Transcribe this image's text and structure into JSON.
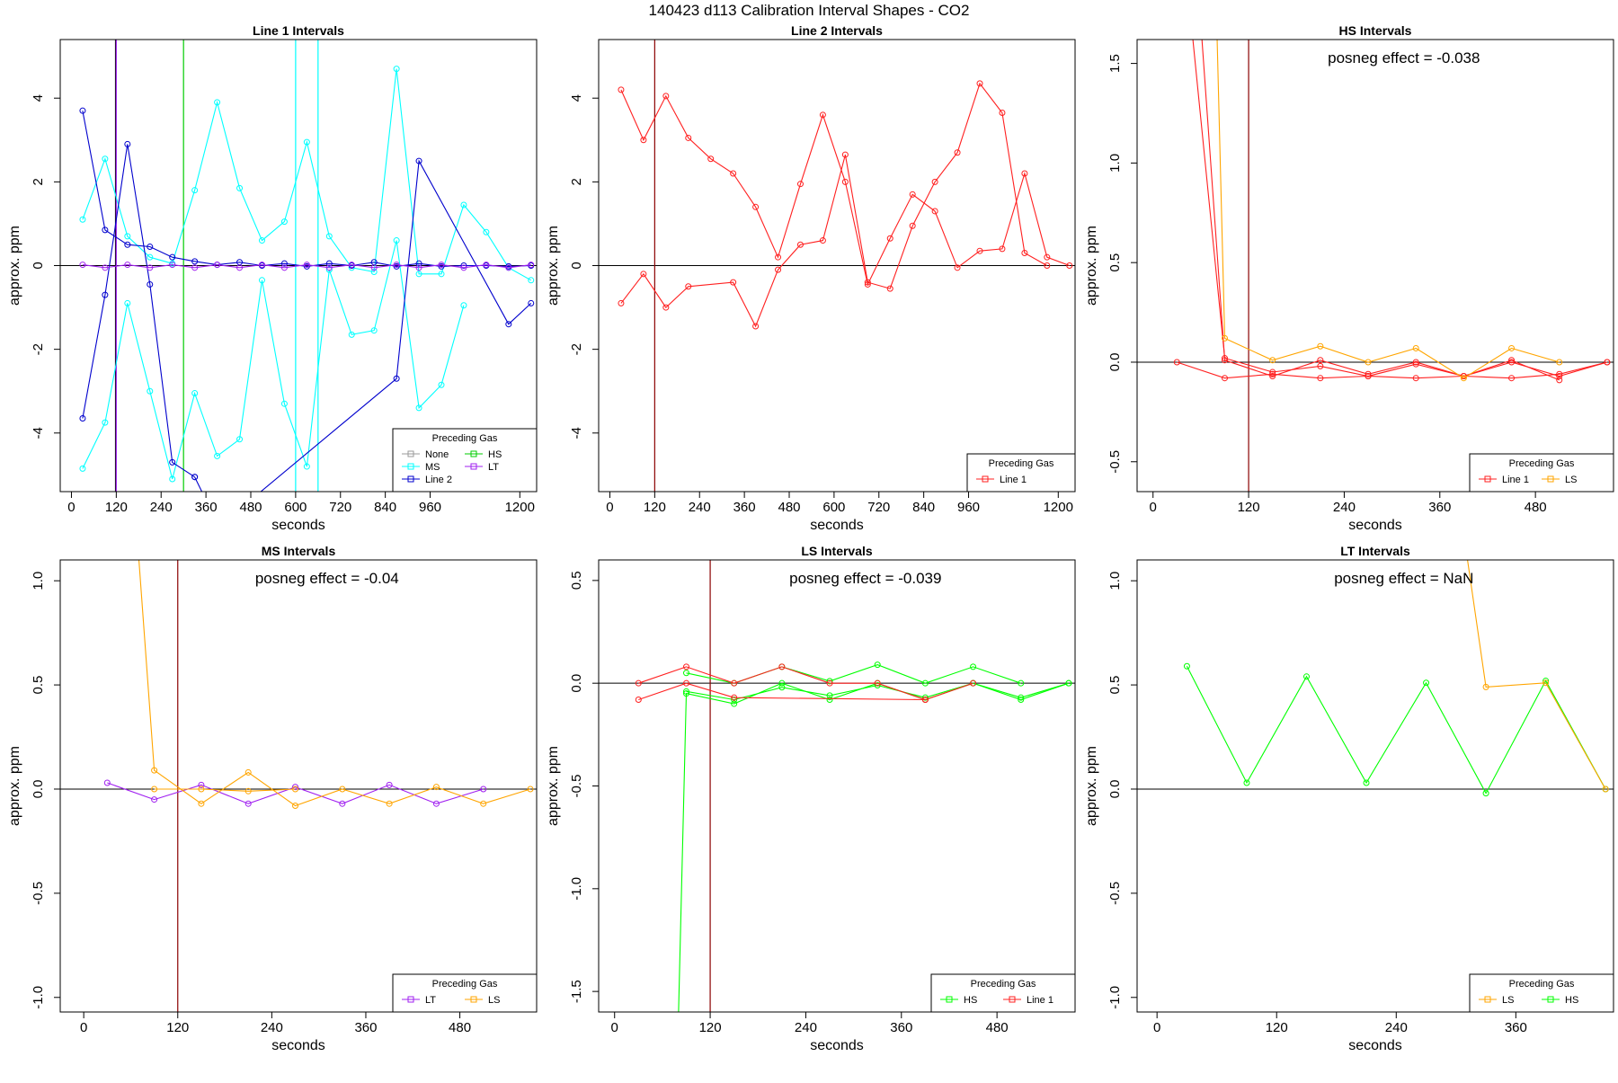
{
  "figure_title": "140423  d113   Calibration Interval Shapes - CO2",
  "chart_data": [
    {
      "type": "line",
      "title": "Line 1 Intervals",
      "xlabel": "seconds",
      "ylabel": "approx. ppm",
      "xlim": [
        -30,
        1245
      ],
      "ylim": [
        -5.4,
        5.4
      ],
      "xticks": [
        0,
        120,
        240,
        360,
        480,
        600,
        720,
        840,
        960,
        1200
      ],
      "yticks": [
        -4,
        -2,
        0,
        2,
        4
      ],
      "vlines": [
        {
          "x": 118,
          "color": "#000000"
        },
        {
          "x": 120,
          "color": "#a020f0"
        },
        {
          "x": 300,
          "color": "#00cc00"
        },
        {
          "x": 600,
          "color": "#00ffff"
        },
        {
          "x": 660,
          "color": "#00ffff"
        }
      ],
      "posneg_label": "",
      "legend": {
        "title": "Preceding Gas",
        "position": "bottom-right",
        "columns": 2,
        "entries": [
          {
            "name": "None",
            "color": "#9a9a9a"
          },
          {
            "name": "MS",
            "color": "#00ffff"
          },
          {
            "name": "Line 2",
            "color": "#0000cd"
          },
          {
            "name": "HS",
            "color": "#00cc00"
          },
          {
            "name": "LT",
            "color": "#a020f0"
          }
        ]
      },
      "series": [
        {
          "name": "MS",
          "color": "#00ffff",
          "x": [
            30,
            90,
            150,
            210,
            270,
            330,
            390,
            450,
            510,
            570,
            630,
            690,
            750,
            810,
            870,
            930,
            990,
            1050,
            1110,
            1170,
            1230
          ],
          "y": [
            1.1,
            2.55,
            0.7,
            0.2,
            0.05,
            1.8,
            3.9,
            1.85,
            0.6,
            1.05,
            2.95,
            0.7,
            -0.05,
            -0.15,
            4.7,
            -0.2,
            -0.2,
            1.45,
            0.8,
            -0.05,
            -0.35
          ]
        },
        {
          "name": "MS",
          "color": "#00ffff",
          "x": [
            30,
            90,
            150,
            210,
            270,
            330,
            390,
            450,
            510,
            570,
            630,
            690,
            750,
            810,
            870,
            930,
            990,
            1050
          ],
          "y": [
            -4.85,
            -3.75,
            -0.9,
            -3.0,
            -5.1,
            -3.05,
            -4.55,
            -4.15,
            -0.35,
            -3.3,
            -4.8,
            -0.1,
            -1.65,
            -1.55,
            0.6,
            -3.4,
            -2.85,
            -0.95
          ]
        },
        {
          "name": "Line 2",
          "color": "#0000cd",
          "x": [
            30,
            90,
            150,
            210,
            270,
            330,
            390,
            450,
            510,
            570,
            630,
            690,
            750,
            810,
            870,
            930,
            990,
            1050,
            1110,
            1170,
            1230
          ],
          "y": [
            3.7,
            0.85,
            0.5,
            0.45,
            0.2,
            0.1,
            0.02,
            0.08,
            0.0,
            0.05,
            -0.02,
            0.05,
            0.0,
            0.08,
            -0.02,
            0.05,
            -0.02,
            0.0,
            0.0,
            -0.02,
            0.0
          ]
        },
        {
          "name": "Line 2",
          "color": "#0000cd",
          "x": [
            30,
            90,
            150,
            210,
            270,
            330
          ],
          "y": [
            -3.65,
            -0.7,
            2.9,
            -0.45,
            -4.7,
            -5.05
          ]
        },
        {
          "name": "Line 2",
          "color": "#0000cd",
          "x": [
            330,
            360
          ],
          "y": [
            -5.05,
            -5.6
          ]
        },
        {
          "name": "Line 2",
          "color": "#0000cd",
          "x": [
            480,
            870,
            930,
            1170,
            1230
          ],
          "y": [
            -5.6,
            -2.7,
            2.5,
            -1.4,
            -0.9
          ]
        },
        {
          "name": "LT",
          "color": "#a020f0",
          "x": [
            30,
            90,
            150,
            210,
            270,
            330,
            390,
            450,
            510,
            570,
            630,
            690,
            750,
            810,
            870,
            930,
            990,
            1050,
            1110,
            1170,
            1230
          ],
          "y": [
            0.02,
            -0.05,
            0.02,
            -0.05,
            0.02,
            -0.05,
            0.02,
            -0.05,
            0.02,
            -0.05,
            0.02,
            -0.05,
            0.02,
            -0.05,
            0.02,
            -0.05,
            0.02,
            -0.05,
            0.02,
            -0.05,
            0.02
          ]
        }
      ]
    },
    {
      "type": "line",
      "title": "Line 2 Intervals",
      "xlabel": "seconds",
      "ylabel": "approx. ppm",
      "xlim": [
        -30,
        1245
      ],
      "ylim": [
        -5.4,
        5.4
      ],
      "xticks": [
        0,
        120,
        240,
        360,
        480,
        600,
        720,
        840,
        960,
        1200
      ],
      "yticks": [
        -4,
        -2,
        0,
        2,
        4
      ],
      "vlines": [
        {
          "x": 120,
          "color": "#8b0000"
        }
      ],
      "posneg_label": "",
      "legend": {
        "title": "Preceding Gas",
        "position": "bottom-right",
        "columns": 1,
        "entries": [
          {
            "name": "Line 1",
            "color": "#ff2020"
          }
        ]
      },
      "series": [
        {
          "name": "Line 1",
          "color": "#ff2020",
          "x": [
            30,
            90,
            150,
            210,
            270,
            330,
            390,
            450,
            510,
            570,
            630,
            690,
            750,
            810,
            870,
            930,
            990,
            1050,
            1110,
            1170,
            1230
          ],
          "y": [
            4.2,
            3.0,
            4.05,
            3.05,
            2.55,
            2.2,
            1.4,
            0.2,
            1.95,
            3.6,
            2.0,
            -0.45,
            0.65,
            1.7,
            1.3,
            -0.05,
            0.35,
            0.4,
            2.2,
            0.2,
            0.0
          ]
        },
        {
          "name": "Line 1",
          "color": "#ff2020",
          "x": [
            30,
            90,
            150,
            210,
            330,
            390,
            450,
            510,
            570,
            630,
            690,
            750,
            810,
            870,
            930,
            990,
            1050,
            1110,
            1170
          ],
          "y": [
            -0.9,
            -0.2,
            -1.0,
            -0.5,
            -0.4,
            -1.45,
            -0.1,
            0.5,
            0.6,
            2.65,
            -0.4,
            -0.55,
            0.95,
            2.0,
            2.7,
            4.35,
            3.65,
            0.3,
            0.0
          ]
        }
      ]
    },
    {
      "type": "line",
      "title": "HS Intervals",
      "xlabel": "seconds",
      "ylabel": "approx. ppm",
      "xlim": [
        -20,
        578
      ],
      "ylim": [
        -0.65,
        1.62
      ],
      "xticks": [
        0,
        120,
        240,
        360,
        480
      ],
      "yticks": [
        -0.5,
        0.0,
        0.5,
        1.0,
        1.5
      ],
      "vlines": [
        {
          "x": 120,
          "color": "#8b0000"
        }
      ],
      "posneg_label": "posneg effect = -0.038",
      "legend": {
        "title": "Preceding Gas",
        "position": "bottom-right",
        "columns": 2,
        "entries": [
          {
            "name": "Line 1",
            "color": "#ff2020"
          },
          {
            "name": "LS",
            "color": "#ffa500"
          }
        ]
      },
      "series": [
        {
          "name": "Line 1",
          "color": "#ff2020",
          "x": [
            48,
            90,
            150,
            210,
            270,
            330,
            390,
            450,
            510,
            570
          ],
          "y": [
            1.7,
            0.02,
            -0.05,
            -0.02,
            -0.07,
            -0.01,
            -0.07,
            0.0,
            -0.07,
            0.0
          ]
        },
        {
          "name": "Line 1",
          "color": "#ff2020",
          "x": [
            60,
            90,
            150,
            210,
            270,
            330,
            390,
            450,
            510
          ],
          "y": [
            1.7,
            0.01,
            -0.07,
            0.01,
            -0.06,
            0.0,
            -0.07,
            0.01,
            -0.09
          ]
        },
        {
          "name": "Line 1",
          "color": "#ff2020",
          "x": [
            30,
            90,
            150,
            210,
            270,
            330,
            390,
            450,
            510,
            570
          ],
          "y": [
            0.0,
            -0.08,
            -0.06,
            -0.08,
            -0.07,
            -0.08,
            -0.07,
            -0.08,
            -0.06,
            0.0
          ]
        },
        {
          "name": "LS",
          "color": "#ffa500",
          "x": [
            80,
            90,
            150,
            210,
            270,
            330,
            390,
            450,
            510
          ],
          "y": [
            1.7,
            0.12,
            0.01,
            0.08,
            0.0,
            0.07,
            -0.08,
            0.07,
            0.0
          ]
        }
      ]
    },
    {
      "type": "line",
      "title": "MS Intervals",
      "xlabel": "seconds",
      "ylabel": "approx. ppm",
      "xlim": [
        -30,
        578
      ],
      "ylim": [
        -1.07,
        1.1
      ],
      "xticks": [
        0,
        120,
        240,
        360,
        480
      ],
      "yticks": [
        -1.0,
        -0.5,
        0.0,
        0.5,
        1.0
      ],
      "vlines": [
        {
          "x": 120,
          "color": "#8b0000"
        }
      ],
      "posneg_label": "posneg effect = -0.04",
      "legend": {
        "title": "Preceding Gas",
        "position": "bottom-right",
        "columns": 2,
        "entries": [
          {
            "name": "LT",
            "color": "#a020f0"
          },
          {
            "name": "LS",
            "color": "#ffa500"
          }
        ]
      },
      "series": [
        {
          "name": "LT",
          "color": "#a020f0",
          "x": [
            30,
            90,
            150,
            210,
            270,
            330,
            390,
            450,
            510
          ],
          "y": [
            0.03,
            -0.05,
            0.02,
            -0.07,
            0.01,
            -0.07,
            0.02,
            -0.07,
            0.0
          ]
        },
        {
          "name": "LS",
          "color": "#ffa500",
          "x": [
            70,
            90,
            150,
            210,
            270,
            330,
            390,
            450,
            510,
            570
          ],
          "y": [
            1.12,
            0.09,
            -0.07,
            0.08,
            -0.08,
            0.0,
            -0.07,
            0.01,
            -0.07,
            0.0
          ]
        },
        {
          "name": "LS",
          "color": "#ffa500",
          "x": [
            90,
            150,
            210,
            270
          ],
          "y": [
            0.0,
            0.0,
            -0.01,
            0.0
          ]
        }
      ]
    },
    {
      "type": "line",
      "title": "LS Intervals",
      "xlabel": "seconds",
      "ylabel": "approx. ppm",
      "xlim": [
        -20,
        578
      ],
      "ylim": [
        -1.6,
        0.6
      ],
      "xticks": [
        0,
        120,
        240,
        360,
        480
      ],
      "yticks": [
        -1.5,
        -1.0,
        -0.5,
        0.0,
        0.5
      ],
      "vlines": [
        {
          "x": 120,
          "color": "#8b0000"
        }
      ],
      "posneg_label": "posneg effect = -0.039",
      "legend": {
        "title": "Preceding Gas",
        "position": "bottom-right",
        "columns": 2,
        "entries": [
          {
            "name": "HS",
            "color": "#00ff00"
          },
          {
            "name": "Line 1",
            "color": "#ff2020"
          }
        ]
      },
      "series": [
        {
          "name": "HS",
          "color": "#00ff00",
          "x": [
            80,
            90,
            150,
            210,
            270,
            330,
            390,
            450,
            510,
            570
          ],
          "y": [
            -1.65,
            -0.05,
            -0.1,
            0.0,
            -0.08,
            0.0,
            -0.08,
            0.0,
            -0.08,
            0.0
          ]
        },
        {
          "name": "HS",
          "color": "#00ff00",
          "x": [
            90,
            150,
            210,
            270,
            330,
            390,
            450,
            510,
            570
          ],
          "y": [
            -0.04,
            -0.08,
            -0.02,
            -0.06,
            -0.01,
            -0.07,
            0.0,
            -0.07,
            0.0
          ]
        },
        {
          "name": "HS",
          "color": "#00ff00",
          "x": [
            90,
            150,
            210,
            270,
            330,
            390,
            450,
            510
          ],
          "y": [
            0.05,
            0.0,
            0.08,
            0.01,
            0.09,
            0.0,
            0.08,
            0.0
          ]
        },
        {
          "name": "Line 1",
          "color": "#ff2020",
          "x": [
            30,
            90,
            150,
            210,
            270,
            330,
            390,
            450
          ],
          "y": [
            0.0,
            0.08,
            0.0,
            0.08,
            0.0,
            0.0,
            -0.08,
            0.0
          ]
        },
        {
          "name": "Line 1",
          "color": "#ff2020",
          "x": [
            30,
            90,
            150,
            390
          ],
          "y": [
            -0.08,
            0.0,
            -0.07,
            -0.08
          ]
        }
      ]
    },
    {
      "type": "line",
      "title": "LT Intervals",
      "xlabel": "seconds",
      "ylabel": "approx. ppm",
      "xlim": [
        -20,
        458
      ],
      "ylim": [
        -1.07,
        1.1
      ],
      "xticks": [
        0,
        120,
        240,
        360
      ],
      "yticks": [
        -1.0,
        -0.5,
        0.0,
        0.5,
        1.0
      ],
      "vlines": [],
      "posneg_label": "posneg effect = NaN",
      "legend": {
        "title": "Preceding Gas",
        "position": "bottom-right",
        "columns": 2,
        "entries": [
          {
            "name": "LS",
            "color": "#ffa500"
          },
          {
            "name": "HS",
            "color": "#00ff00"
          }
        ]
      },
      "series": [
        {
          "name": "HS",
          "color": "#00ff00",
          "x": [
            30,
            90,
            150,
            210,
            270,
            330,
            390,
            450
          ],
          "y": [
            0.59,
            0.03,
            0.54,
            0.03,
            0.51,
            -0.02,
            0.52,
            0.0
          ]
        },
        {
          "name": "LS",
          "color": "#ffa500",
          "x": [
            310,
            330,
            390,
            450
          ],
          "y": [
            1.15,
            0.49,
            0.51,
            0.0
          ]
        }
      ]
    }
  ]
}
